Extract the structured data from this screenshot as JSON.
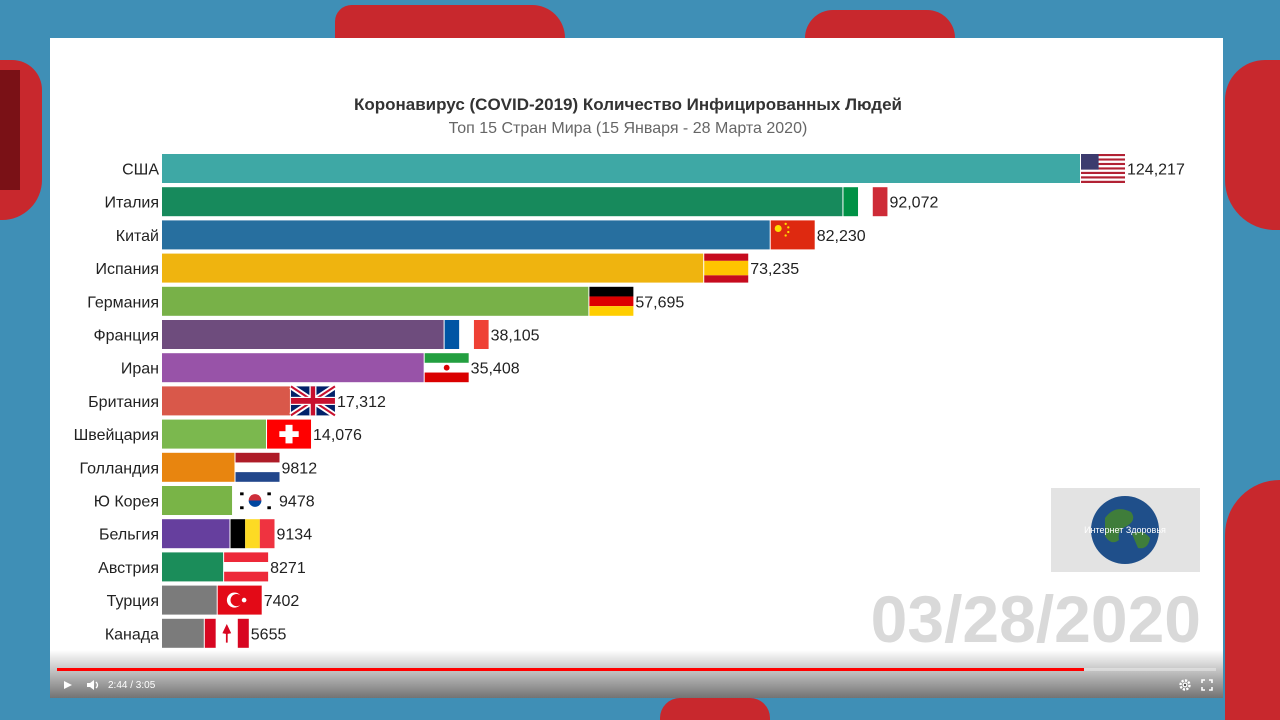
{
  "chart_data": {
    "type": "bar",
    "orientation": "horizontal",
    "title": "Коронавирус (COVID-2019) Количество Инфицированных Людей",
    "subtitle": "Топ 15 Стран Мира (15 Января - 28 Марта 2020)",
    "date": "03/28/2020",
    "categories": [
      "США",
      "Италия",
      "Китай",
      "Испания",
      "Германия",
      "Франция",
      "Иран",
      "Британия",
      "Швейцария",
      "Голландия",
      "Ю Корея",
      "Бельгия",
      "Австрия",
      "Турция",
      "Канада"
    ],
    "values": [
      124217,
      92072,
      82230,
      73235,
      57695,
      38105,
      35408,
      17312,
      14076,
      9812,
      9478,
      9134,
      8271,
      7402,
      5655
    ],
    "value_labels": [
      "124,217",
      "92,072",
      "82,230",
      "73,235",
      "57,695",
      "38,105",
      "35,408",
      "17,312",
      "14,076",
      "9812",
      "9478",
      "9134",
      "8271",
      "7402",
      "5655"
    ],
    "bar_colors": [
      "#3ea8a5",
      "#178a5c",
      "#276f9f",
      "#efb40f",
      "#78b148",
      "#6e4c7d",
      "#9853a8",
      "#d9584a",
      "#7bb84e",
      "#e8850f",
      "#79b447",
      "#663f9e",
      "#1b8d5a",
      "#7b7b7b",
      "#7b7b7b"
    ],
    "flags": [
      "flag-us",
      "flag-it",
      "flag-cn",
      "flag-es",
      "flag-de",
      "flag-fr",
      "flag-ir",
      "flag-gb",
      "flag-ch",
      "flag-nl",
      "flag-kr",
      "flag-be",
      "flag-at",
      "flag-tr",
      "flag-ca"
    ],
    "grid": false,
    "legend": "none"
  },
  "logo": {
    "text": "Интернет Здоровья"
  },
  "player": {
    "time": "2:44 / 3:05",
    "progress": 0.886
  }
}
